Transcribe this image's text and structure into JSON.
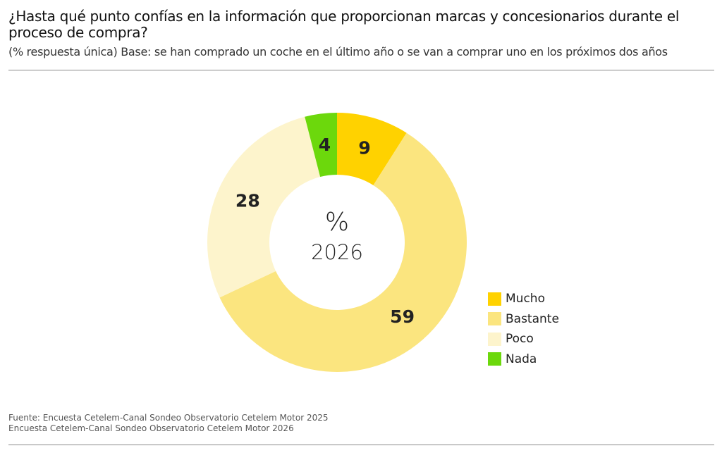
{
  "chart_data": {
    "type": "pie",
    "variant": "donut",
    "title": "¿Hasta qué punto confías en la información que proporcionan marcas y concesionarios durante el proceso de compra?",
    "subtitle": "(% respuesta única) Base: se han comprado un coche en el último año o se van a comprar uno en los próximos dos años",
    "center_label": {
      "symbol": "%",
      "year": "2026"
    },
    "slices": [
      {
        "label": "Mucho",
        "value": 9,
        "color": "#FFD200"
      },
      {
        "label": "Bastante",
        "value": 59,
        "color": "#FBE57F"
      },
      {
        "label": "Poco",
        "value": 28,
        "color": "#FDF4CC"
      },
      {
        "label": "Nada",
        "value": 4,
        "color": "#6CD80C"
      }
    ],
    "legend_position": "right",
    "unit": "%"
  },
  "source": {
    "line1": "Fuente: Encuesta Cetelem-Canal Sondeo Observatorio Cetelem Motor 2025",
    "line2": "Encuesta Cetelem-Canal Sondeo Observatorio Cetelem Motor 2026"
  }
}
